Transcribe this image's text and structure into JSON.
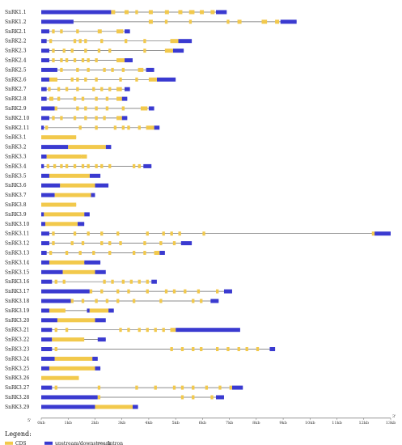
{
  "axis": {
    "min_kb": 0,
    "max_kb": 13,
    "tick_labels": [
      "0kb",
      "1kb",
      "2kb",
      "3kb",
      "4kb",
      "5kb",
      "6kb",
      "7kb",
      "8kb",
      "9kb",
      "10kb",
      "11kb",
      "12kb",
      "13kb"
    ],
    "start_mark": "5'",
    "end_mark": "3'"
  },
  "legend": {
    "title": "Legend:",
    "items": [
      {
        "key": "cds",
        "label": "CDS",
        "color": "#F2C94C"
      },
      {
        "key": "utr",
        "label": "upstream/downstream",
        "color": "#3A3AD0"
      },
      {
        "key": "intron",
        "label": "Intron",
        "color": "#666666"
      }
    ]
  },
  "colors": {
    "cds": "#F2C94C",
    "utr": "#3A3AD0",
    "intron": "#666666"
  },
  "genes": [
    {
      "name": "SnRK1.1",
      "length": 6.9,
      "utr": [
        [
          0,
          2.6
        ],
        [
          6.5,
          6.9
        ]
      ],
      "exons": [
        [
          2.6,
          2.75
        ],
        [
          3.1,
          3.25
        ],
        [
          3.5,
          3.6
        ],
        [
          4.0,
          4.15
        ],
        [
          4.6,
          4.75
        ],
        [
          5.1,
          5.25
        ],
        [
          5.5,
          5.7
        ],
        [
          5.9,
          6.05
        ],
        [
          6.3,
          6.45
        ]
      ]
    },
    {
      "name": "SnRK1.2",
      "length": 9.5,
      "utr": [
        [
          0,
          1.2
        ],
        [
          8.9,
          9.5
        ]
      ],
      "exons": [
        [
          4.0,
          4.15
        ],
        [
          4.6,
          4.7
        ],
        [
          5.5,
          5.6
        ],
        [
          6.9,
          7.0
        ],
        [
          7.3,
          7.45
        ],
        [
          8.2,
          8.4
        ],
        [
          8.7,
          8.85
        ]
      ]
    },
    {
      "name": "SnRK2.1",
      "length": 3.3,
      "utr": [
        [
          0,
          0.3
        ],
        [
          3.1,
          3.3
        ]
      ],
      "exons": [
        [
          0.4,
          0.5
        ],
        [
          0.7,
          0.8
        ],
        [
          1.3,
          1.4
        ],
        [
          2.1,
          2.25
        ],
        [
          2.8,
          3.05
        ]
      ]
    },
    {
      "name": "SnRK2.2",
      "length": 5.6,
      "utr": [
        [
          0,
          0.2
        ],
        [
          5.1,
          5.6
        ]
      ],
      "exons": [
        [
          0.3,
          0.4
        ],
        [
          1.2,
          1.3
        ],
        [
          1.4,
          1.5
        ],
        [
          1.6,
          1.7
        ],
        [
          2.2,
          2.3
        ],
        [
          3.1,
          3.2
        ],
        [
          3.8,
          3.9
        ],
        [
          4.8,
          5.1
        ]
      ]
    },
    {
      "name": "SnRK2.3",
      "length": 5.3,
      "utr": [
        [
          0,
          0.3
        ],
        [
          4.9,
          5.3
        ]
      ],
      "exons": [
        [
          0.4,
          0.5
        ],
        [
          0.8,
          0.9
        ],
        [
          1.1,
          1.2
        ],
        [
          1.6,
          1.7
        ],
        [
          2.1,
          2.2
        ],
        [
          2.5,
          2.6
        ],
        [
          3.8,
          3.9
        ],
        [
          4.6,
          4.9
        ]
      ]
    },
    {
      "name": "SnRK2.4",
      "length": 3.4,
      "utr": [
        [
          0,
          0.3
        ],
        [
          3.1,
          3.4
        ]
      ],
      "exons": [
        [
          0.4,
          0.5
        ],
        [
          0.7,
          0.8
        ],
        [
          0.9,
          1.0
        ],
        [
          1.2,
          1.3
        ],
        [
          1.5,
          1.6
        ],
        [
          1.7,
          1.8
        ],
        [
          2.0,
          2.1
        ],
        [
          2.8,
          3.1
        ]
      ]
    },
    {
      "name": "SnRK2.5",
      "length": 4.2,
      "utr": [
        [
          0,
          0.6
        ],
        [
          3.9,
          4.2
        ]
      ],
      "exons": [
        [
          0.7,
          0.8
        ],
        [
          1.3,
          1.4
        ],
        [
          1.7,
          1.8
        ],
        [
          2.3,
          2.4
        ],
        [
          2.6,
          2.7
        ],
        [
          3.0,
          3.1
        ],
        [
          3.6,
          3.8
        ]
      ]
    },
    {
      "name": "SnRK2.6",
      "length": 5.0,
      "utr": [
        [
          0,
          0.3
        ],
        [
          4.3,
          5.0
        ]
      ],
      "exons": [
        [
          0.3,
          0.6
        ],
        [
          1.1,
          1.2
        ],
        [
          1.3,
          1.4
        ],
        [
          1.6,
          1.7
        ],
        [
          2.0,
          2.1
        ],
        [
          2.9,
          3.0
        ],
        [
          3.5,
          3.6
        ],
        [
          4.0,
          4.3
        ]
      ]
    },
    {
      "name": "SnRK2.7",
      "length": 3.3,
      "utr": [
        [
          0,
          0.2
        ],
        [
          3.1,
          3.3
        ]
      ],
      "exons": [
        [
          0.25,
          0.35
        ],
        [
          0.6,
          0.7
        ],
        [
          0.9,
          1.0
        ],
        [
          1.3,
          1.4
        ],
        [
          1.9,
          2.0
        ],
        [
          2.2,
          2.3
        ],
        [
          2.5,
          2.6
        ],
        [
          2.8,
          3.0
        ]
      ]
    },
    {
      "name": "SnRK2.8",
      "length": 3.2,
      "utr": [
        [
          0,
          0.2
        ],
        [
          3.0,
          3.2
        ]
      ],
      "exons": [
        [
          0.3,
          0.45
        ],
        [
          0.6,
          0.7
        ],
        [
          1.2,
          1.3
        ],
        [
          1.5,
          1.6
        ],
        [
          2.0,
          2.1
        ],
        [
          2.4,
          2.5
        ],
        [
          2.8,
          3.0
        ]
      ]
    },
    {
      "name": "SnRK2.9",
      "length": 4.2,
      "utr": [
        [
          0,
          0.5
        ],
        [
          4.0,
          4.2
        ]
      ],
      "exons": [
        [
          0.5,
          0.6
        ],
        [
          1.3,
          1.4
        ],
        [
          1.6,
          1.7
        ],
        [
          2.0,
          2.1
        ],
        [
          2.4,
          2.5
        ],
        [
          3.0,
          3.1
        ],
        [
          3.7,
          3.95
        ]
      ]
    },
    {
      "name": "SnRK2.10",
      "length": 3.2,
      "utr": [
        [
          0,
          0.3
        ],
        [
          3.0,
          3.2
        ]
      ],
      "exons": [
        [
          0.4,
          0.5
        ],
        [
          0.7,
          0.8
        ],
        [
          1.2,
          1.3
        ],
        [
          1.6,
          1.7
        ],
        [
          2.0,
          2.1
        ],
        [
          2.3,
          2.4
        ],
        [
          2.8,
          3.0
        ]
      ]
    },
    {
      "name": "SnRK2.11",
      "length": 4.4,
      "utr": [
        [
          0,
          0.1
        ],
        [
          4.2,
          4.4
        ]
      ],
      "exons": [
        [
          0.15,
          0.25
        ],
        [
          1.4,
          1.5
        ],
        [
          2.0,
          2.1
        ],
        [
          2.7,
          2.8
        ],
        [
          3.0,
          3.1
        ],
        [
          3.2,
          3.3
        ],
        [
          3.6,
          3.7
        ],
        [
          3.9,
          4.2
        ]
      ]
    },
    {
      "name": "SnRK3.1",
      "length": 1.3,
      "utr": [],
      "exons": [
        [
          0,
          1.3
        ]
      ]
    },
    {
      "name": "SnRK3.2",
      "length": 2.6,
      "utr": [
        [
          0,
          1.0
        ],
        [
          2.4,
          2.6
        ]
      ],
      "exons": [
        [
          1.0,
          2.4
        ]
      ]
    },
    {
      "name": "SnRK3.3",
      "length": 1.7,
      "utr": [
        [
          0,
          0.2
        ]
      ],
      "exons": [
        [
          0.2,
          1.5
        ],
        [
          1.5,
          1.7
        ]
      ]
    },
    {
      "name": "SnRK3.4",
      "length": 4.1,
      "utr": [
        [
          0,
          0.1
        ],
        [
          3.8,
          4.1
        ]
      ],
      "exons": [
        [
          0.2,
          0.3
        ],
        [
          0.45,
          0.55
        ],
        [
          0.7,
          0.8
        ],
        [
          0.9,
          1.0
        ],
        [
          1.2,
          1.3
        ],
        [
          1.5,
          1.6
        ],
        [
          1.7,
          1.8
        ],
        [
          2.0,
          2.1
        ],
        [
          2.2,
          2.3
        ],
        [
          2.5,
          2.6
        ],
        [
          3.4,
          3.5
        ],
        [
          3.6,
          3.7
        ]
      ]
    },
    {
      "name": "SnRK3.5",
      "length": 2.2,
      "utr": [
        [
          0,
          0.3
        ],
        [
          1.8,
          2.2
        ]
      ],
      "exons": [
        [
          0.3,
          1.8
        ]
      ]
    },
    {
      "name": "SnRK3.6",
      "length": 2.5,
      "utr": [
        [
          0,
          0.7
        ],
        [
          2.0,
          2.5
        ]
      ],
      "exons": [
        [
          0.7,
          2.0
        ]
      ]
    },
    {
      "name": "SnRK3.7",
      "length": 2.0,
      "utr": [
        [
          0,
          0.5
        ],
        [
          1.85,
          2.0
        ]
      ],
      "exons": [
        [
          0.5,
          1.85
        ]
      ]
    },
    {
      "name": "SnRK3.8",
      "length": 1.3,
      "utr": [],
      "exons": [
        [
          0,
          1.3
        ]
      ]
    },
    {
      "name": "SnRK3.9",
      "length": 1.8,
      "utr": [
        [
          0,
          0.1
        ],
        [
          1.6,
          1.8
        ]
      ],
      "exons": [
        [
          0.1,
          1.6
        ]
      ]
    },
    {
      "name": "SnRK3.10",
      "length": 1.6,
      "utr": [
        [
          0,
          0.15
        ],
        [
          1.35,
          1.6
        ]
      ],
      "exons": [
        [
          0.15,
          1.35
        ]
      ]
    },
    {
      "name": "SnRK3.11",
      "length": 13.0,
      "utr": [
        [
          0,
          0.3
        ],
        [
          12.4,
          13.0
        ]
      ],
      "exons": [
        [
          0.4,
          0.5
        ],
        [
          1.2,
          1.3
        ],
        [
          1.7,
          1.8
        ],
        [
          2.2,
          2.3
        ],
        [
          2.8,
          2.9
        ],
        [
          3.9,
          4.0
        ],
        [
          4.5,
          4.6
        ],
        [
          4.8,
          4.9
        ],
        [
          5.1,
          5.2
        ],
        [
          6.0,
          6.1
        ],
        [
          12.3,
          12.4
        ]
      ]
    },
    {
      "name": "SnRK3.12",
      "length": 5.6,
      "utr": [
        [
          0,
          0.3
        ],
        [
          5.2,
          5.6
        ]
      ],
      "exons": [
        [
          0.4,
          0.5
        ],
        [
          1.1,
          1.2
        ],
        [
          1.5,
          1.6
        ],
        [
          2.2,
          2.3
        ],
        [
          2.5,
          2.6
        ],
        [
          2.9,
          3.0
        ],
        [
          3.8,
          3.9
        ],
        [
          4.4,
          4.5
        ],
        [
          4.9,
          5.0
        ]
      ]
    },
    {
      "name": "SnRK3.13",
      "length": 4.6,
      "utr": [
        [
          0,
          0.2
        ],
        [
          4.4,
          4.6
        ]
      ],
      "exons": [
        [
          0.3,
          0.4
        ],
        [
          0.9,
          1.0
        ],
        [
          1.4,
          1.5
        ],
        [
          1.9,
          2.0
        ],
        [
          2.5,
          2.6
        ],
        [
          3.4,
          3.5
        ],
        [
          3.8,
          3.9
        ],
        [
          4.2,
          4.4
        ]
      ]
    },
    {
      "name": "SnRK3.14",
      "length": 2.2,
      "utr": [
        [
          0,
          0.3
        ],
        [
          1.6,
          2.2
        ]
      ],
      "exons": [
        [
          0.3,
          1.6
        ]
      ]
    },
    {
      "name": "SnRK3.15",
      "length": 2.4,
      "utr": [
        [
          0,
          0.8
        ],
        [
          2.0,
          2.4
        ]
      ],
      "exons": [
        [
          0.8,
          2.0
        ]
      ]
    },
    {
      "name": "SnRK3.16",
      "length": 4.3,
      "utr": [
        [
          0,
          0.4
        ],
        [
          4.1,
          4.3
        ]
      ],
      "exons": [
        [
          0.5,
          0.6
        ],
        [
          0.8,
          0.9
        ],
        [
          2.3,
          2.4
        ],
        [
          2.6,
          2.7
        ],
        [
          3.0,
          3.1
        ],
        [
          3.3,
          3.4
        ],
        [
          3.6,
          3.7
        ],
        [
          3.9,
          4.0
        ]
      ]
    },
    {
      "name": "SnRK3.17",
      "length": 7.1,
      "utr": [
        [
          0,
          1.8
        ],
        [
          6.8,
          7.1
        ]
      ],
      "exons": [
        [
          1.8,
          1.9
        ],
        [
          2.2,
          2.3
        ],
        [
          2.8,
          2.9
        ],
        [
          3.2,
          3.3
        ],
        [
          3.9,
          4.0
        ],
        [
          4.6,
          4.7
        ],
        [
          4.9,
          5.0
        ],
        [
          5.3,
          5.4
        ],
        [
          5.8,
          5.9
        ],
        [
          6.5,
          6.6
        ]
      ]
    },
    {
      "name": "SnRK3.18",
      "length": 6.6,
      "utr": [
        [
          0,
          1.1
        ],
        [
          6.3,
          6.6
        ]
      ],
      "exons": [
        [
          1.1,
          1.2
        ],
        [
          1.5,
          1.6
        ],
        [
          2.0,
          2.1
        ],
        [
          2.4,
          2.5
        ],
        [
          2.8,
          2.9
        ],
        [
          3.4,
          3.5
        ],
        [
          4.4,
          4.5
        ],
        [
          5.6,
          5.7
        ],
        [
          5.9,
          6.0
        ]
      ]
    },
    {
      "name": "SnRK3.19",
      "length": 2.7,
      "utr": [
        [
          0,
          0.3
        ],
        [
          1.7,
          1.8
        ],
        [
          2.5,
          2.7
        ]
      ],
      "exons": [
        [
          0.3,
          0.9
        ],
        [
          1.8,
          2.5
        ]
      ]
    },
    {
      "name": "SnRK3.20",
      "length": 2.4,
      "utr": [
        [
          0,
          0.6
        ],
        [
          2.0,
          2.4
        ]
      ],
      "exons": [
        [
          0.6,
          2.0
        ]
      ]
    },
    {
      "name": "SnRK3.21",
      "length": 7.4,
      "utr": [
        [
          0,
          0.4
        ],
        [
          5.0,
          7.4
        ]
      ],
      "exons": [
        [
          0.5,
          0.6
        ],
        [
          0.9,
          1.0
        ],
        [
          2.9,
          3.0
        ],
        [
          3.2,
          3.3
        ],
        [
          3.6,
          3.7
        ],
        [
          3.9,
          4.0
        ],
        [
          4.2,
          4.3
        ],
        [
          4.5,
          4.6
        ],
        [
          4.8,
          5.0
        ]
      ]
    },
    {
      "name": "SnRK3.22",
      "length": 2.4,
      "utr": [
        [
          0,
          0.4
        ],
        [
          2.1,
          2.4
        ]
      ],
      "exons": [
        [
          0.4,
          1.6
        ]
      ]
    },
    {
      "name": "SnRK3.23",
      "length": 8.7,
      "utr": [
        [
          0,
          0.4
        ],
        [
          8.5,
          8.7
        ]
      ],
      "exons": [
        [
          0.5,
          0.6
        ],
        [
          4.8,
          4.9
        ],
        [
          5.2,
          5.3
        ],
        [
          5.6,
          5.7
        ],
        [
          5.9,
          6.0
        ],
        [
          6.5,
          6.6
        ],
        [
          6.9,
          7.0
        ],
        [
          7.3,
          7.4
        ],
        [
          7.6,
          7.7
        ],
        [
          8.0,
          8.1
        ]
      ]
    },
    {
      "name": "SnRK3.24",
      "length": 2.1,
      "utr": [
        [
          0,
          0.5
        ],
        [
          1.9,
          2.1
        ]
      ],
      "exons": [
        [
          0.5,
          1.9
        ]
      ]
    },
    {
      "name": "SnRK3.25",
      "length": 2.2,
      "utr": [
        [
          0,
          0.3
        ],
        [
          2.0,
          2.2
        ]
      ],
      "exons": [
        [
          0.3,
          2.0
        ]
      ]
    },
    {
      "name": "SnRK3.26",
      "length": 1.4,
      "utr": [],
      "exons": [
        [
          0,
          1.4
        ]
      ]
    },
    {
      "name": "SnRK3.27",
      "length": 7.5,
      "utr": [
        [
          0,
          0.4
        ],
        [
          7.1,
          7.5
        ]
      ],
      "exons": [
        [
          0.5,
          0.6
        ],
        [
          2.1,
          2.2
        ],
        [
          3.5,
          3.6
        ],
        [
          4.2,
          4.3
        ],
        [
          4.9,
          5.0
        ],
        [
          5.2,
          5.3
        ],
        [
          5.6,
          5.7
        ],
        [
          6.1,
          6.2
        ],
        [
          6.6,
          6.7
        ],
        [
          7.0,
          7.1
        ]
      ]
    },
    {
      "name": "SnRK3.28",
      "length": 6.8,
      "utr": [
        [
          0,
          2.1
        ],
        [
          6.5,
          6.8
        ]
      ],
      "exons": [
        [
          2.1,
          2.2
        ],
        [
          5.2,
          5.3
        ],
        [
          5.6,
          5.7
        ],
        [
          6.3,
          6.4
        ]
      ]
    },
    {
      "name": "SnRK3.29",
      "length": 3.6,
      "utr": [
        [
          0,
          2.0
        ],
        [
          3.4,
          3.6
        ]
      ],
      "exons": [
        [
          2.0,
          3.4
        ]
      ]
    }
  ]
}
